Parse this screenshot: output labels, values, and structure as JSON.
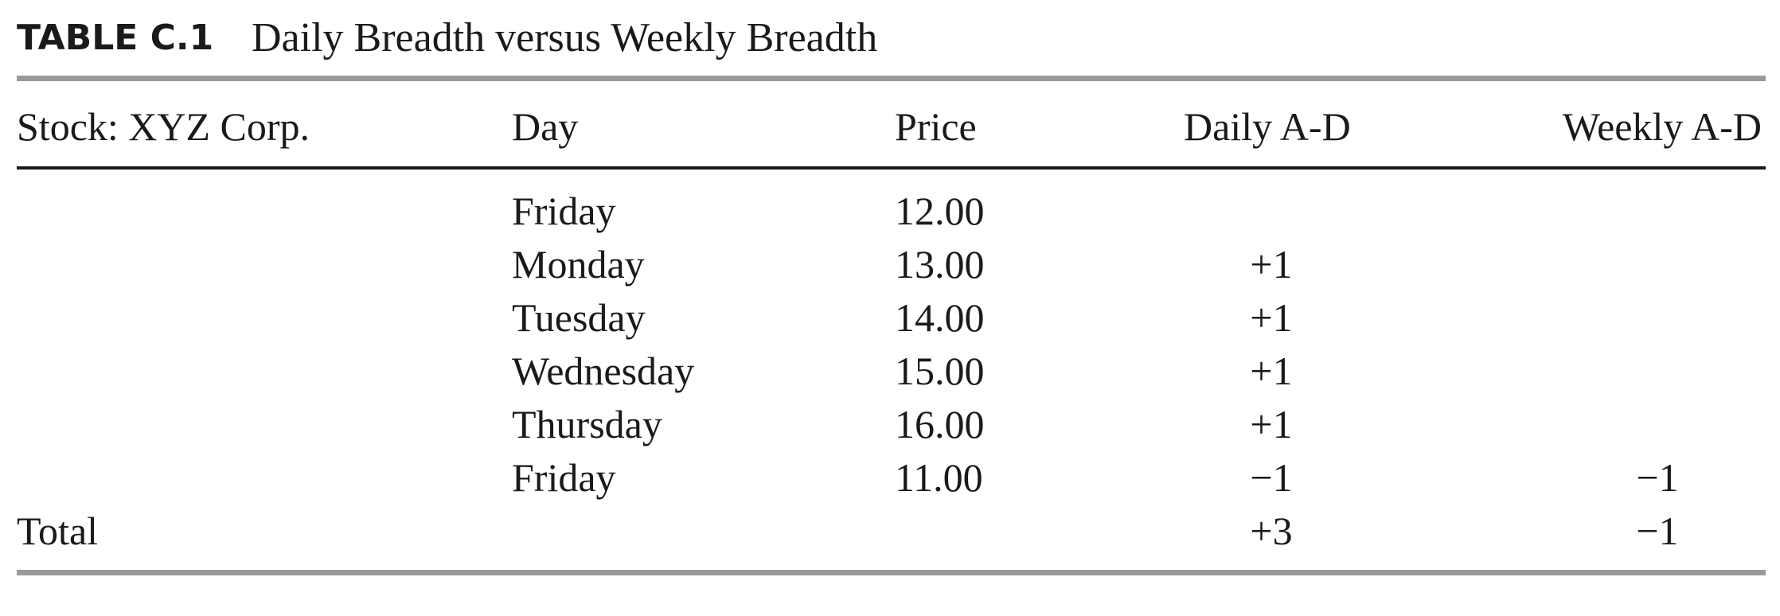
{
  "title": {
    "label": "TABLE C.1",
    "text": "Daily Breadth versus Weekly Breadth"
  },
  "table": {
    "header": [
      "Stock: XYZ Corp.",
      "Day",
      "Price",
      "Daily A-D",
      "Weekly A-D"
    ],
    "rows": [
      [
        null,
        "Friday",
        "12.00",
        null,
        null
      ],
      [
        null,
        "Monday",
        "13.00",
        "+1",
        null
      ],
      [
        null,
        "Tuesday",
        "14.00",
        "+1",
        null
      ],
      [
        null,
        "Wednesday",
        "15.00",
        "+1",
        null
      ],
      [
        null,
        "Thursday",
        "16.00",
        "+1",
        null
      ],
      [
        null,
        "Friday",
        "11.00",
        "−1",
        "−1"
      ],
      [
        "Total",
        null,
        null,
        "+3",
        "−1"
      ]
    ]
  }
}
